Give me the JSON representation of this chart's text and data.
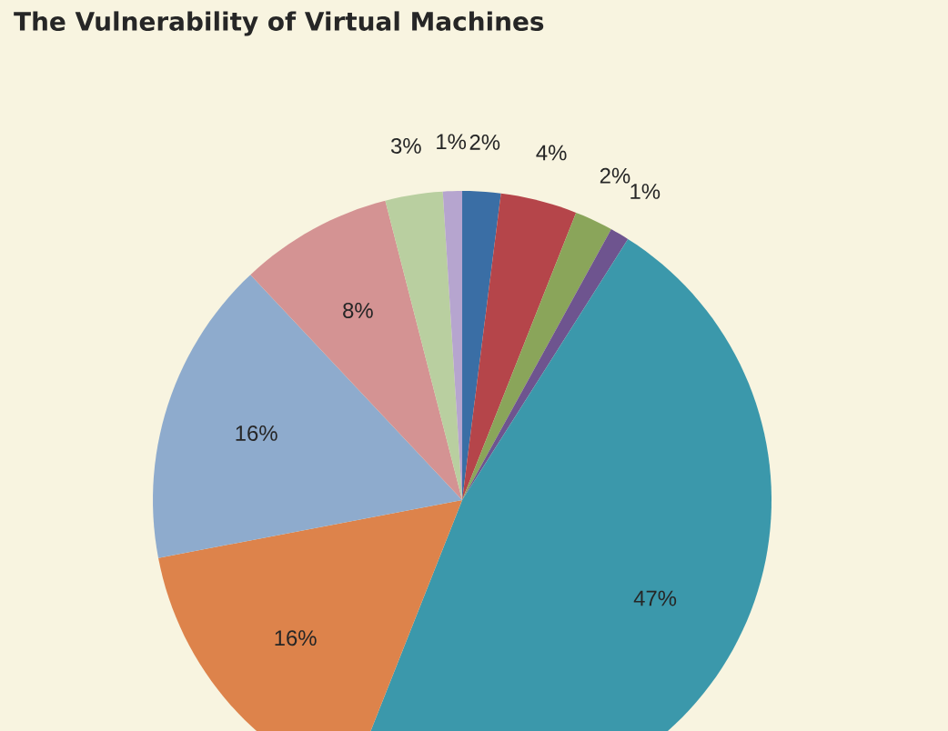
{
  "chart_data": {
    "type": "pie",
    "title": "The Vulnerability of Virtual Machines",
    "categories": [
      null,
      null,
      null,
      null,
      null,
      null,
      null,
      null,
      null,
      null
    ],
    "values": [
      2,
      4,
      2,
      1,
      47,
      16,
      16,
      8,
      3,
      1
    ],
    "value_labels": [
      "2%",
      "4%",
      "2%",
      "1%",
      "47%",
      "16%",
      "16%",
      "8%",
      "3%",
      "1%"
    ],
    "colors": [
      "#3a6ea5",
      "#b5454a",
      "#8aa55a",
      "#6e548f",
      "#3b98ab",
      "#dd834b",
      "#8eabcd",
      "#d49393",
      "#b9cfa0",
      "#b6a5cf"
    ]
  }
}
